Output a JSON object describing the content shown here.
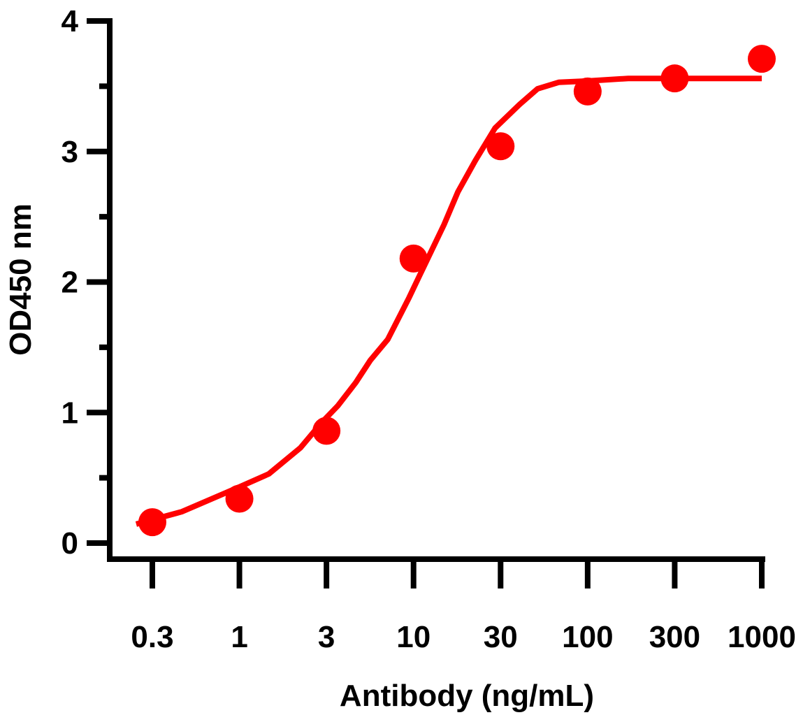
{
  "chart_data": {
    "type": "line",
    "title": "",
    "xlabel": "Antibody (ng/mL)",
    "ylabel": "OD450 nm",
    "x_scale": "log",
    "x_ticks": [
      "0.3",
      "1",
      "3",
      "10",
      "30",
      "100",
      "300",
      "1000"
    ],
    "x_tick_values": [
      0.3,
      1,
      3,
      10,
      30,
      100,
      300,
      1000
    ],
    "y_ticks": [
      "0",
      "1",
      "2",
      "3",
      "4"
    ],
    "ylim": [
      0,
      4
    ],
    "y_minor_step": 0.5,
    "grid": false,
    "legend": "none",
    "color": "#ff0000",
    "points": {
      "x": [
        0.3,
        1,
        3,
        10,
        30,
        100,
        300,
        1000
      ],
      "y": [
        0.16,
        0.34,
        0.86,
        2.18,
        3.04,
        3.46,
        3.56,
        3.71
      ]
    },
    "fit_curve": {
      "x": [
        0.24,
        0.45,
        1,
        1.45,
        2.16,
        2.81,
        3.5,
        4.5,
        5.5,
        7.0,
        9.4,
        10.8,
        14.7,
        17.5,
        21.8,
        28,
        39,
        50,
        67,
        100,
        167,
        1000
      ],
      "y": [
        0.145,
        0.24,
        0.43,
        0.53,
        0.73,
        0.92,
        1.05,
        1.23,
        1.4,
        1.56,
        1.88,
        2.05,
        2.44,
        2.69,
        2.93,
        3.18,
        3.36,
        3.48,
        3.53,
        3.54,
        3.56,
        3.56
      ]
    }
  }
}
